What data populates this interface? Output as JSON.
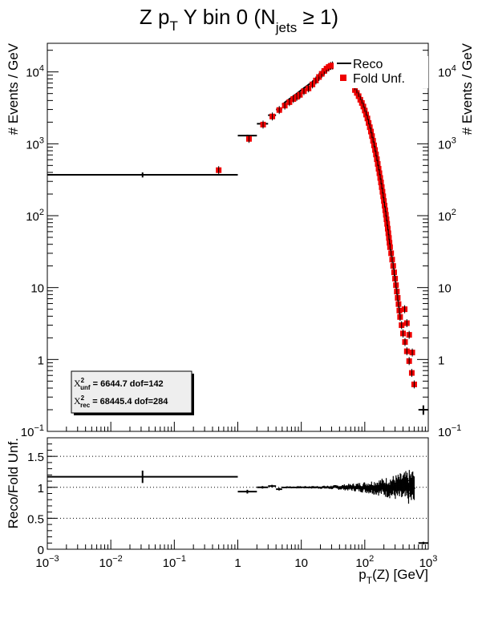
{
  "title": {
    "main": "Z p",
    "main_sub": "T",
    "middle": " Y bin 0 (N",
    "middle_sub": "jets",
    "tail": " ≥ 1)"
  },
  "chart_data": [
    {
      "type": "scatter",
      "panel": "main",
      "ylabel": "# Events / GeV",
      "ylabel_right": "# Events / GeV",
      "xscale": "log",
      "yscale": "log",
      "xlim": [
        0.001,
        1000
      ],
      "ylim": [
        0.1,
        25000
      ],
      "yticks": [
        {
          "label": "10",
          "sup": "4",
          "value": 10000
        },
        {
          "label": "10",
          "sup": "3",
          "value": 1000
        },
        {
          "label": "10",
          "sup": "2",
          "value": 100
        },
        {
          "label": "10",
          "sup": "",
          "value": 10
        },
        {
          "label": "1",
          "sup": "",
          "value": 1
        },
        {
          "label": "10",
          "sup": "−1",
          "value": 0.1
        }
      ],
      "legend": {
        "position": "top-right",
        "entries": [
          {
            "label": "Reco",
            "style": "line",
            "color": "#000000"
          },
          {
            "label": "Fold Unf.",
            "style": "square",
            "color": "#ee0000"
          }
        ]
      },
      "stats_box": {
        "unf": {
          "sym": "X",
          "sup": "2",
          "sub": "unf",
          "label": " =   6644.7  dof=142"
        },
        "rec": {
          "sym": "X",
          "sup": "2",
          "sub": "rec",
          "label": " =  68445.4  dof=284"
        }
      },
      "reco_bins": [
        {
          "x1": 0.001,
          "x2": 1,
          "y": 370,
          "yerr": 0.08
        },
        {
          "x1": 1,
          "x2": 2,
          "y": 1300,
          "yerr": 0.03
        },
        {
          "x1": 2,
          "x2": 3,
          "y": 1900,
          "yerr": 0.02
        },
        {
          "x1": 3,
          "x2": 4,
          "y": 2500,
          "yerr": 0.02
        },
        {
          "x1": 4,
          "x2": 5,
          "y": 3000,
          "yerr": 0.02
        },
        {
          "x1": 700,
          "x2": 1000,
          "y": 0.2,
          "yerr": 0.15
        }
      ],
      "reco_curve": [
        [
          5,
          3500
        ],
        [
          6,
          4000
        ],
        [
          7,
          4400
        ],
        [
          8,
          4800
        ],
        [
          10,
          5600
        ],
        [
          12,
          6300
        ],
        [
          15,
          7300
        ],
        [
          18,
          8500
        ],
        [
          20,
          9300
        ],
        [
          22,
          10200
        ],
        [
          25,
          11200
        ],
        [
          28,
          12000
        ],
        [
          30,
          12300
        ],
        [
          32,
          12400
        ],
        [
          35,
          12300
        ],
        [
          38,
          11800
        ],
        [
          40,
          11000
        ]
      ],
      "fold_points": [
        [
          0.5,
          430
        ],
        [
          1.5,
          1170
        ],
        [
          2.5,
          1850
        ],
        [
          3.5,
          2400
        ],
        [
          4.5,
          2950
        ],
        [
          5.5,
          3400
        ],
        [
          6.5,
          3800
        ],
        [
          7.5,
          4200
        ],
        [
          8.5,
          4500
        ],
        [
          9.5,
          4800
        ],
        [
          11,
          5400
        ],
        [
          13,
          5900
        ],
        [
          15,
          6700
        ],
        [
          17,
          7600
        ],
        [
          19,
          8500
        ],
        [
          21,
          9400
        ],
        [
          23,
          10300
        ],
        [
          25,
          11100
        ],
        [
          27,
          11700
        ],
        [
          29,
          12100
        ],
        [
          31,
          12300
        ],
        [
          33,
          12200
        ],
        [
          35,
          11900
        ],
        [
          37,
          11300
        ],
        [
          39,
          10600
        ],
        [
          70,
          5600
        ],
        [
          75,
          5100
        ],
        [
          80,
          4600
        ],
        [
          85,
          4100
        ],
        [
          90,
          3700
        ],
        [
          95,
          3300
        ],
        [
          100,
          2900
        ],
        [
          105,
          2550
        ],
        [
          110,
          2250
        ],
        [
          115,
          1950
        ],
        [
          120,
          1700
        ],
        [
          125,
          1480
        ],
        [
          130,
          1280
        ],
        [
          135,
          1100
        ],
        [
          140,
          950
        ],
        [
          145,
          820
        ],
        [
          150,
          710
        ],
        [
          155,
          610
        ],
        [
          160,
          525
        ],
        [
          165,
          450
        ],
        [
          170,
          390
        ],
        [
          175,
          335
        ],
        [
          180,
          290
        ],
        [
          185,
          250
        ],
        [
          190,
          215
        ],
        [
          195,
          186
        ],
        [
          200,
          160
        ],
        [
          205,
          138
        ],
        [
          210,
          119
        ],
        [
          215,
          103
        ],
        [
          220,
          89
        ],
        [
          225,
          77
        ],
        [
          230,
          66
        ],
        [
          235,
          57
        ],
        [
          240,
          49
        ],
        [
          245,
          42
        ],
        [
          250,
          36.5
        ],
        [
          260,
          30
        ],
        [
          270,
          24.5
        ],
        [
          280,
          20
        ],
        [
          290,
          16.3
        ],
        [
          300,
          13.3
        ],
        [
          310,
          10.8
        ],
        [
          320,
          8.8
        ],
        [
          330,
          7.2
        ],
        [
          340,
          5.9
        ],
        [
          350,
          4.8
        ],
        [
          360,
          3.9
        ],
        [
          380,
          3.0
        ],
        [
          400,
          2.3
        ],
        [
          430,
          1.75
        ],
        [
          460,
          1.3
        ],
        [
          500,
          0.95
        ],
        [
          550,
          0.65
        ],
        [
          600,
          0.45
        ],
        [
          425,
          5.0
        ],
        [
          460,
          3.2
        ],
        [
          500,
          2.2
        ],
        [
          560,
          1.25
        ]
      ]
    },
    {
      "type": "scatter",
      "panel": "ratio",
      "ylabel": "Reco/Fold Unf.",
      "xlabel": "p",
      "xlabel_sub": "T",
      "xlabel_tail": "(Z) [GeV]",
      "xscale": "log",
      "xlim": [
        0.001,
        1000
      ],
      "ylim": [
        0,
        1.8
      ],
      "yticks": [
        "0",
        "0.5",
        "1",
        "1.5"
      ],
      "xticks": [
        {
          "label": "10",
          "sup": "−3",
          "value": 0.001
        },
        {
          "label": "10",
          "sup": "−2",
          "value": 0.01
        },
        {
          "label": "10",
          "sup": "−1",
          "value": 0.1
        },
        {
          "label": "1",
          "sup": "",
          "value": 1
        },
        {
          "label": "10",
          "sup": "",
          "value": 10
        },
        {
          "label": "10",
          "sup": "2",
          "value": 100
        },
        {
          "label": "10",
          "sup": "3",
          "value": 1000
        }
      ],
      "reference_lines": [
        0.5,
        1.0,
        1.5
      ],
      "points": [
        {
          "x1": 0.001,
          "x2": 1,
          "y": 1.17,
          "yerr": 0.1
        },
        {
          "x1": 1,
          "x2": 2,
          "y": 0.93,
          "yerr": 0.03
        },
        {
          "x1": 2,
          "x2": 3,
          "y": 1.0,
          "yerr": 0.02
        },
        {
          "x1": 3,
          "x2": 4,
          "y": 1.02,
          "yerr": 0.02
        },
        {
          "x1": 4,
          "x2": 5,
          "y": 0.97,
          "yerr": 0.02
        },
        {
          "x1": 700,
          "x2": 1000,
          "y": 0.1,
          "yerr": 0.02
        }
      ],
      "dense_range": [
        5,
        600
      ]
    }
  ]
}
